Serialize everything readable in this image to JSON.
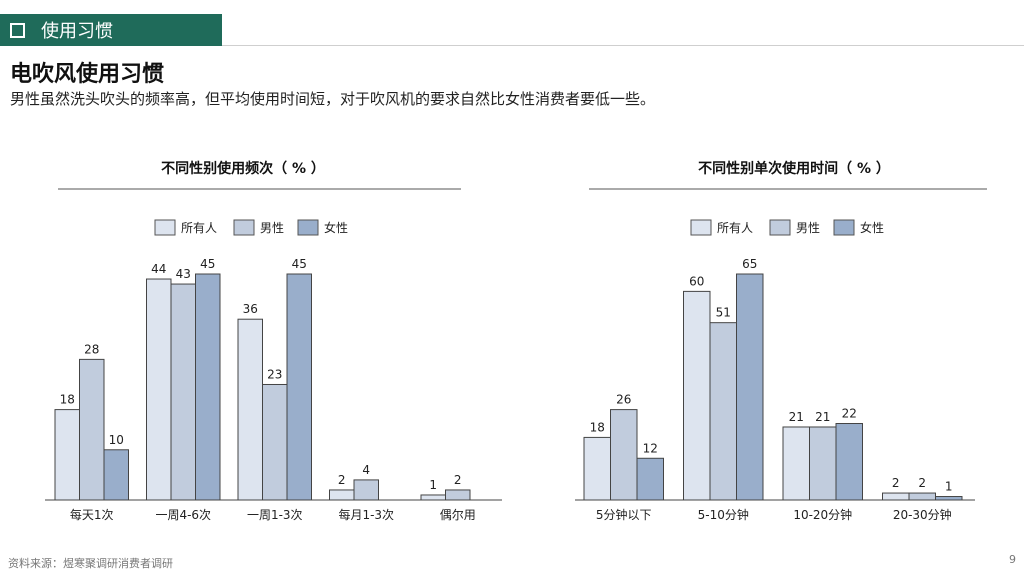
{
  "header": {
    "section_label": "使用习惯"
  },
  "page": {
    "title": "电吹风使用习惯",
    "subtitle": "男性虽然洗头吹头的频率高，但平均使用时间短，对于吹风机的要求自然比女性消费者要低一些。"
  },
  "colors": {
    "all": "#dde4ef",
    "male": "#c1ccdd",
    "female": "#99aecb",
    "accent": "#1f6b5a"
  },
  "chart_data": [
    {
      "type": "bar",
      "title": "不同性别使用频次（ % ）",
      "categories": [
        "每天1次",
        "一周4-6次",
        "一周1-3次",
        "每月1-3次",
        "偶尔用"
      ],
      "series": [
        {
          "name": "所有人",
          "values": [
            18,
            44,
            36,
            2,
            1
          ]
        },
        {
          "name": "男性",
          "values": [
            28,
            43,
            23,
            4,
            2
          ]
        },
        {
          "name": "女性",
          "values": [
            10,
            45,
            45,
            null,
            null
          ]
        }
      ],
      "ylim": [
        0,
        50
      ],
      "legend": "top",
      "grid": false
    },
    {
      "type": "bar",
      "title": "不同性别单次使用时间（ % ）",
      "categories": [
        "5分钟以下",
        "5-10分钟",
        "10-20分钟",
        "20-30分钟"
      ],
      "series": [
        {
          "name": "所有人",
          "values": [
            18,
            60,
            21,
            2
          ]
        },
        {
          "name": "男性",
          "values": [
            26,
            51,
            21,
            2
          ]
        },
        {
          "name": "女性",
          "values": [
            12,
            65,
            22,
            1
          ]
        }
      ],
      "ylim": [
        0,
        70
      ],
      "legend": "top",
      "grid": false
    }
  ],
  "footer": {
    "source": "资料来源：煜寒聚调研消费者调研",
    "page_number": "9"
  }
}
